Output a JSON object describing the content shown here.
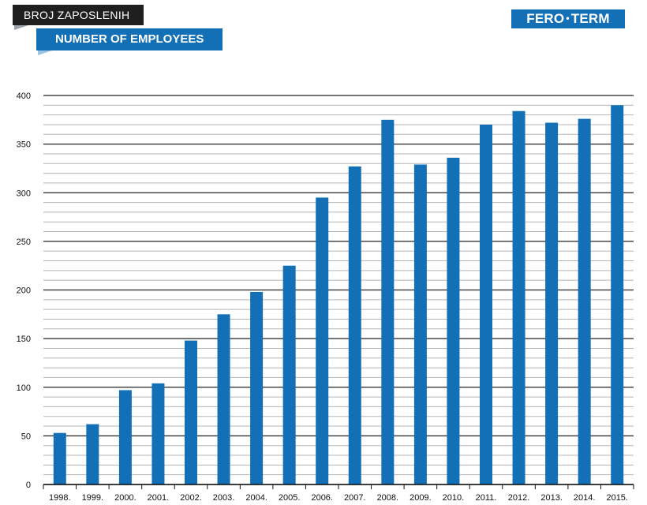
{
  "header": {
    "label_top": "BROJ ZAPOSLENIH",
    "label_main": "NUMBER OF EMPLOYEES"
  },
  "logo": {
    "left": "FERO",
    "right": "TERM",
    "separator": "•"
  },
  "colors": {
    "bar": "#1370b7",
    "header_dark": "#1f1f1f",
    "grid_major": "#222222",
    "grid_minor": "#b5b5b5"
  },
  "chart_data": {
    "type": "bar",
    "categories": [
      "1998.",
      "1999.",
      "2000.",
      "2001.",
      "2002.",
      "2003.",
      "2004.",
      "2005.",
      "2006.",
      "2007.",
      "2008.",
      "2009.",
      "2010.",
      "2011.",
      "2012.",
      "2013.",
      "2014.",
      "2015."
    ],
    "values": [
      53,
      62,
      97,
      104,
      148,
      175,
      198,
      225,
      295,
      327,
      375,
      329,
      336,
      370,
      384,
      372,
      376,
      390
    ],
    "title": "",
    "xlabel": "",
    "ylabel": "",
    "ylim": [
      0,
      400
    ],
    "y_ticks": [
      0,
      50,
      100,
      150,
      200,
      250,
      300,
      350,
      400
    ],
    "minor_grid_step": 10,
    "grid": true,
    "legend": "none"
  }
}
